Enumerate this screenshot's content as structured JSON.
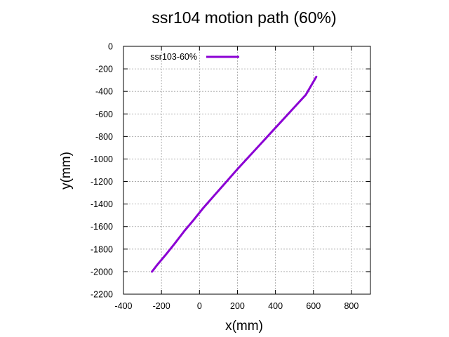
{
  "chart_data": {
    "type": "line",
    "title": "ssr104 motion path (60%)",
    "xlabel": "x(mm)",
    "ylabel": "y(mm)",
    "xlim": [
      -400,
      900
    ],
    "ylim": [
      -2200,
      0
    ],
    "xticks": [
      -400,
      -200,
      0,
      200,
      400,
      600,
      800
    ],
    "yticks": [
      0,
      -200,
      -400,
      -600,
      -800,
      -1000,
      -1200,
      -1400,
      -1600,
      -1800,
      -2000,
      -2200
    ],
    "grid": true,
    "legend_position": "top-left",
    "series": [
      {
        "name": "ssr103-60%",
        "color": "#8b00d4",
        "x": [
          -250,
          -220,
          -180,
          -130,
          -80,
          -30,
          20,
          80,
          140,
          200,
          260,
          320,
          380,
          440,
          500,
          560,
          615
        ],
        "y": [
          -2000,
          -1935,
          -1855,
          -1750,
          -1640,
          -1540,
          -1435,
          -1320,
          -1205,
          -1090,
          -980,
          -870,
          -760,
          -650,
          -540,
          -430,
          -270
        ]
      }
    ]
  }
}
